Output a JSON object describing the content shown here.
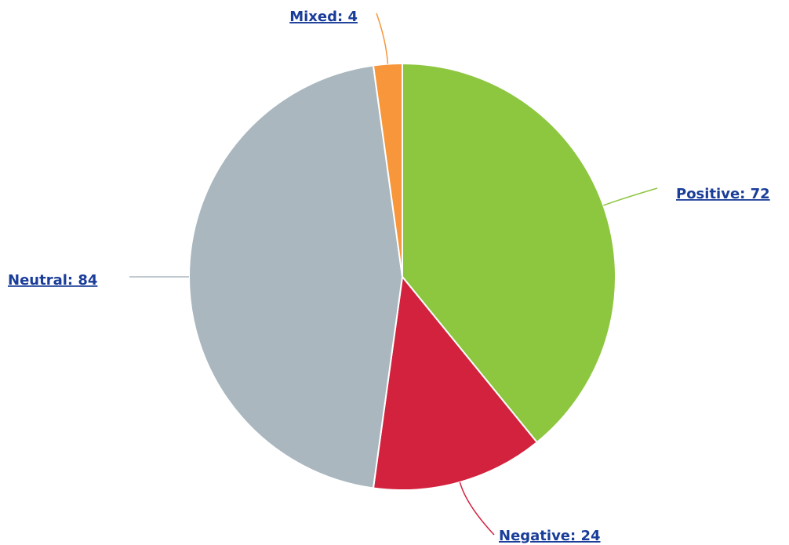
{
  "chart_data": {
    "type": "pie",
    "categories": [
      "Positive",
      "Negative",
      "Neutral",
      "Mixed"
    ],
    "values": [
      72,
      24,
      84,
      4
    ],
    "value_labels": [
      "Positive: 72",
      "Negative: 24",
      "Neutral: 84",
      "Mixed: 4"
    ],
    "colors": [
      "#8dc63f",
      "#d2223e",
      "#aab7bf",
      "#f7963a"
    ]
  }
}
